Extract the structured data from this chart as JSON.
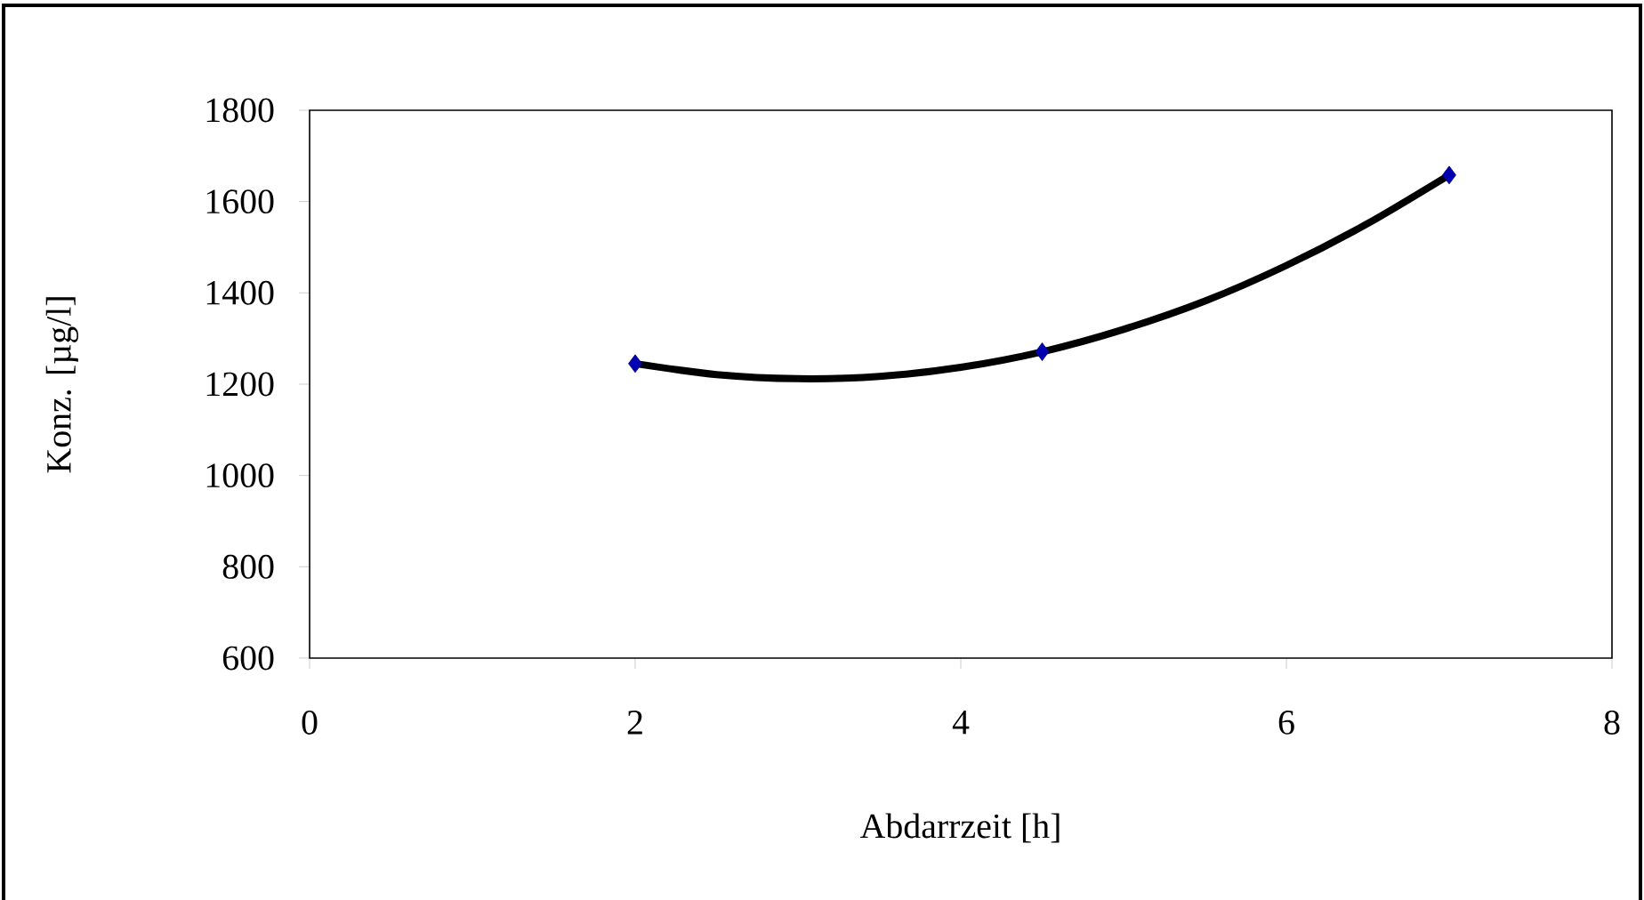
{
  "chart_data": {
    "type": "scatter",
    "xlabel": "Abdarrzeit [h]",
    "ylabel": "Konz. [µg/l]",
    "series": [
      {
        "color": "#000080",
        "marker": "diamond",
        "x": [
          2,
          4.5,
          7
        ],
        "values": [
          1245,
          1271,
          1658
        ]
      },
      {
        "type": "line",
        "color": "#000000",
        "marker": "none",
        "x": [
          2,
          2.5,
          3,
          3.5,
          4,
          4.5,
          5,
          5.5,
          6,
          6.5,
          7
        ],
        "values": [
          1245,
          1221,
          1212,
          1217,
          1237,
          1271,
          1320,
          1382,
          1460,
          1552,
          1658
        ]
      }
    ],
    "xlim": [
      0,
      8
    ],
    "xticks": [
      0,
      2,
      4,
      6,
      8
    ],
    "ylim": [
      600,
      1800
    ],
    "yticks": [
      600,
      800,
      1000,
      1200,
      1400,
      1600,
      1800
    ],
    "grid": false
  }
}
